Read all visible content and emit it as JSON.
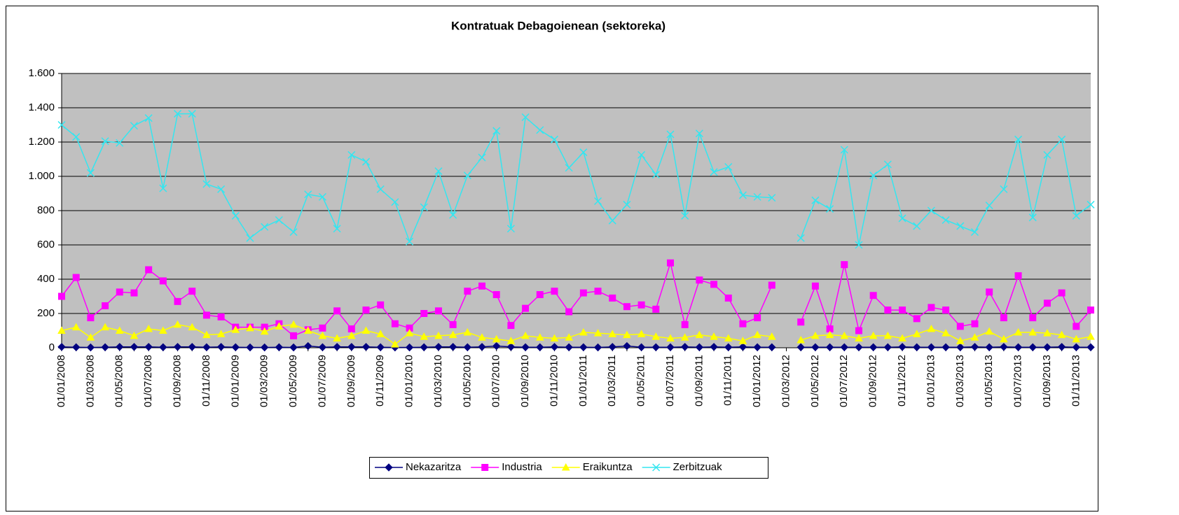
{
  "chart_data": {
    "type": "line",
    "title": "Kontratuak Debagoienean (sektoreka)",
    "categories": [
      "01/01/2008",
      null,
      "01/03/2008",
      null,
      "01/05/2008",
      null,
      "01/07/2008",
      null,
      "01/09/2008",
      null,
      "01/11/2008",
      null,
      "01/01/2009",
      null,
      "01/03/2009",
      null,
      "01/05/2009",
      null,
      "01/07/2009",
      null,
      "01/09/2009",
      null,
      "01/11/2009",
      null,
      "01/01/2010",
      null,
      "01/03/2010",
      null,
      "01/05/2010",
      null,
      "01/07/2010",
      null,
      "01/09/2010",
      null,
      "01/11/2010",
      null,
      "01/01/2011",
      null,
      "01/03/2011",
      null,
      "01/05/2011",
      null,
      "01/07/2011",
      null,
      "01/09/2011",
      null,
      "01/11/2011",
      null,
      "01/01/2012",
      null,
      "01/03/2012",
      null,
      "01/05/2012",
      null,
      "01/07/2012",
      null,
      "01/09/2012",
      null,
      "01/11/2012",
      null,
      "01/01/2013",
      null,
      "01/03/2013",
      null,
      "01/05/2013",
      null,
      "01/07/2013",
      null,
      "01/09/2013",
      null,
      "01/11/2013",
      null
    ],
    "series": [
      {
        "name": "Nekazaritza",
        "color": "#000080",
        "marker": "diamond",
        "values": [
          5,
          3,
          2,
          3,
          5,
          5,
          5,
          3,
          5,
          5,
          3,
          5,
          3,
          2,
          2,
          3,
          2,
          10,
          3,
          5,
          5,
          5,
          3,
          2,
          2,
          3,
          5,
          5,
          3,
          5,
          10,
          5,
          3,
          3,
          5,
          3,
          3,
          2,
          5,
          10,
          3,
          3,
          3,
          5,
          3,
          5,
          3,
          5,
          3,
          3,
          null,
          3,
          3,
          3,
          3,
          3,
          3,
          3,
          5,
          3,
          3,
          3,
          3,
          5,
          3,
          5,
          3,
          3,
          3,
          5,
          3,
          3
        ]
      },
      {
        "name": "Industria",
        "color": "#ff00ff",
        "marker": "square",
        "values": [
          300,
          410,
          175,
          245,
          325,
          320,
          455,
          390,
          270,
          330,
          190,
          180,
          120,
          120,
          120,
          140,
          70,
          105,
          115,
          215,
          110,
          220,
          250,
          140,
          115,
          200,
          215,
          135,
          330,
          360,
          310,
          130,
          230,
          310,
          330,
          210,
          320,
          330,
          290,
          240,
          250,
          225,
          495,
          135,
          395,
          370,
          290,
          140,
          175,
          365,
          null,
          150,
          360,
          110,
          485,
          100,
          305,
          220,
          220,
          170,
          235,
          220,
          125,
          140,
          325,
          175,
          420,
          175,
          260,
          320,
          125,
          220
        ]
      },
      {
        "name": "Eraikuntza",
        "color": "#ffff00",
        "marker": "triangle",
        "values": [
          100,
          120,
          60,
          120,
          100,
          70,
          110,
          100,
          135,
          120,
          75,
          80,
          105,
          115,
          95,
          125,
          135,
          100,
          70,
          55,
          70,
          100,
          80,
          20,
          85,
          65,
          70,
          75,
          90,
          60,
          50,
          40,
          70,
          60,
          55,
          60,
          90,
          85,
          80,
          75,
          80,
          65,
          55,
          60,
          75,
          65,
          55,
          40,
          75,
          65,
          null,
          45,
          70,
          75,
          70,
          55,
          70,
          70,
          55,
          80,
          110,
          85,
          40,
          60,
          95,
          50,
          90,
          90,
          85,
          75,
          50,
          65
        ]
      },
      {
        "name": "Zerbitzuak",
        "color": "#33e6f0",
        "marker": "x",
        "values": [
          1300,
          1230,
          1020,
          1205,
          1195,
          1295,
          1340,
          930,
          1365,
          1365,
          955,
          925,
          770,
          640,
          705,
          745,
          675,
          895,
          880,
          695,
          1125,
          1085,
          925,
          850,
          620,
          820,
          1030,
          775,
          1005,
          1110,
          1265,
          695,
          1345,
          1270,
          1215,
          1050,
          1140,
          855,
          742,
          835,
          1125,
          1010,
          1245,
          770,
          1250,
          1025,
          1055,
          890,
          880,
          875,
          null,
          640,
          860,
          810,
          1155,
          600,
          1005,
          1070,
          755,
          710,
          800,
          745,
          710,
          675,
          830,
          925,
          1215,
          760,
          1125,
          1215,
          770,
          835
        ]
      }
    ],
    "ylim": [
      0,
      1600
    ],
    "yticks": [
      0,
      200,
      400,
      600,
      800,
      {
        "value": 1000,
        "label": "1.000"
      },
      {
        "value": 1200,
        "label": "1.200"
      },
      {
        "value": 1400,
        "label": "1.400"
      },
      {
        "value": 1600,
        "label": "1.600"
      }
    ],
    "grid": true,
    "plot_background": "#c0c0c0",
    "legend": "bottom"
  }
}
